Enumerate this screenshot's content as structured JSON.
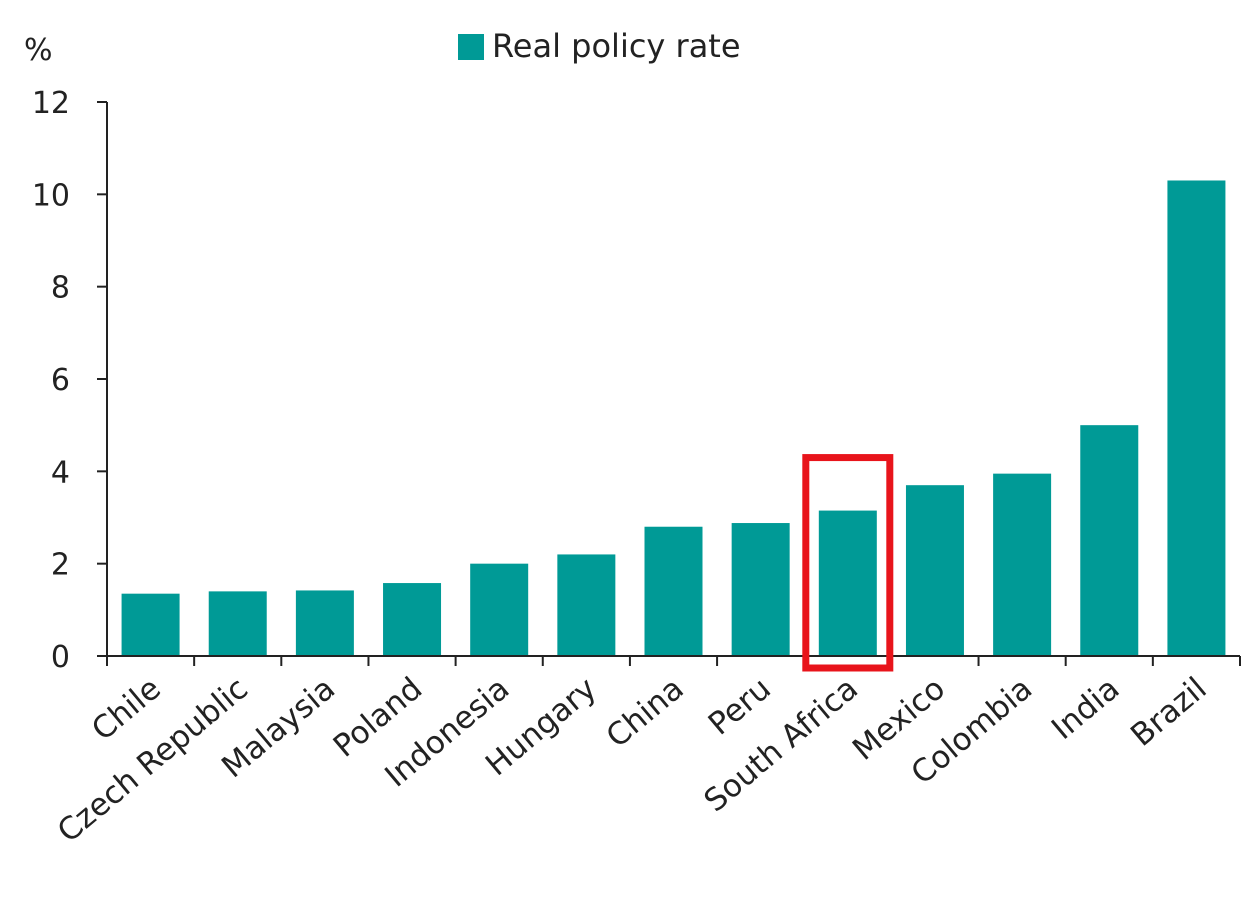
{
  "chart_data": {
    "type": "bar",
    "ylabel": "%",
    "ylim": [
      0,
      12
    ],
    "yticks": [
      0,
      2,
      4,
      6,
      8,
      10,
      12
    ],
    "legend": {
      "label": "Real policy rate",
      "position": "top-center"
    },
    "categories": [
      "Chile",
      "Czech Republic",
      "Malaysia",
      "Poland",
      "Indonesia",
      "Hungary",
      "China",
      "Peru",
      "South Africa",
      "Mexico",
      "Colombia",
      "India",
      "Brazil"
    ],
    "series": [
      {
        "name": "Real policy rate",
        "values": [
          1.35,
          1.4,
          1.42,
          1.58,
          2.0,
          2.2,
          2.8,
          2.88,
          3.15,
          3.7,
          3.95,
          5.0,
          10.3
        ]
      }
    ],
    "highlight": {
      "category": "South Africa",
      "color": "#e8141b"
    },
    "colors": {
      "bar": "#009a96",
      "axis": "#222222"
    },
    "grid": false
  }
}
